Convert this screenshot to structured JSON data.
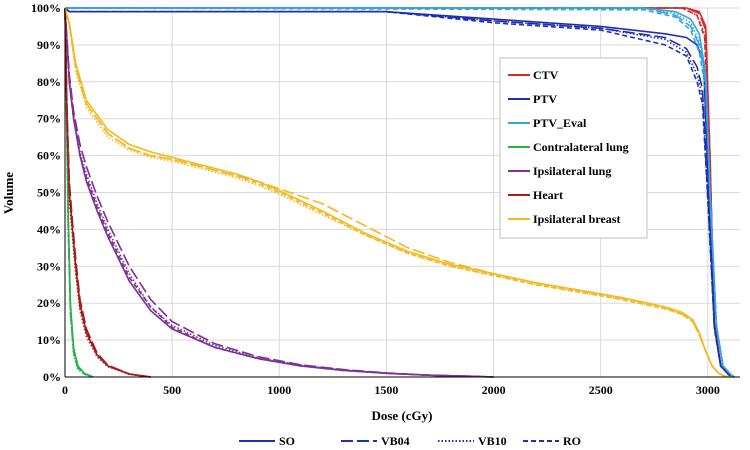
{
  "chart_data": {
    "type": "line",
    "title": "",
    "xlabel": "Dose (cGy)",
    "ylabel": "Volume",
    "xlim": [
      0,
      3150
    ],
    "ylim": [
      0,
      100
    ],
    "x_ticks": [
      0,
      500,
      1000,
      1500,
      2000,
      2500,
      3000
    ],
    "x_tick_labels": [
      "0",
      "500",
      "1000",
      "1500",
      "2000",
      "2500",
      "3000"
    ],
    "y_ticks": [
      0,
      10,
      20,
      30,
      40,
      50,
      60,
      70,
      80,
      90,
      100
    ],
    "y_tick_labels": [
      "0%",
      "10%",
      "20%",
      "30%",
      "40%",
      "50%",
      "60%",
      "70%",
      "80%",
      "90%",
      "100%"
    ],
    "grid": true,
    "structure_legend_position": "upper-right",
    "method_legend_position": "bottom-center",
    "structures": [
      {
        "name": "CTV",
        "color": "#d42a2a"
      },
      {
        "name": "PTV",
        "color": "#1f2fb4"
      },
      {
        "name": "PTV_Eval",
        "color": "#30a6e0"
      },
      {
        "name": "Contralateral lung",
        "color": "#25b34a"
      },
      {
        "name": "Ipsilateral lung",
        "color": "#7b3294"
      },
      {
        "name": "Heart",
        "color": "#a51c1c"
      },
      {
        "name": "Ipsilateral breast",
        "color": "#f2b81d"
      }
    ],
    "methods": [
      {
        "name": "SO",
        "dash": "solid"
      },
      {
        "name": "VB04",
        "dash": "long-dash"
      },
      {
        "name": "VB10",
        "dash": "dot"
      },
      {
        "name": "RO",
        "dash": "dash"
      }
    ],
    "series": [
      {
        "structure": "CTV",
        "method": "SO",
        "x": [
          0,
          2900,
          2960,
          2990,
          3010,
          3030,
          3060,
          3100,
          3120
        ],
        "y": [
          100,
          100,
          99,
          95,
          60,
          15,
          3,
          0.5,
          0
        ]
      },
      {
        "structure": "CTV",
        "method": "VB04",
        "x": [
          0,
          2900,
          2960,
          2990,
          3010,
          3030,
          3060,
          3100,
          3120
        ],
        "y": [
          100,
          100,
          98.5,
          94,
          60,
          14,
          3,
          0.5,
          0
        ]
      },
      {
        "structure": "CTV",
        "method": "VB10",
        "x": [
          0,
          2880,
          2950,
          2985,
          3010,
          3030,
          3060,
          3100,
          3120
        ],
        "y": [
          100,
          100,
          98,
          93,
          58,
          14,
          3,
          0.5,
          0
        ]
      },
      {
        "structure": "CTV",
        "method": "RO",
        "x": [
          0,
          2880,
          2950,
          2985,
          3010,
          3030,
          3060,
          3100,
          3120
        ],
        "y": [
          100,
          100,
          98,
          92,
          57,
          13,
          3,
          0.5,
          0
        ]
      },
      {
        "structure": "PTV",
        "method": "SO",
        "x": [
          0,
          20,
          1500,
          2000,
          2500,
          2800,
          2900,
          2950,
          2980,
          3000,
          3030,
          3060,
          3100,
          3120
        ],
        "y": [
          100,
          99,
          99,
          97,
          95,
          93,
          92,
          90,
          85,
          55,
          14,
          3,
          0.5,
          0
        ]
      },
      {
        "structure": "PTV",
        "method": "VB04",
        "x": [
          0,
          20,
          1500,
          2000,
          2500,
          2800,
          2900,
          2950,
          2975,
          2995,
          3030,
          3060,
          3100,
          3120
        ],
        "y": [
          100,
          99,
          99,
          96.5,
          94.5,
          92,
          89,
          84,
          78,
          55,
          14,
          3,
          0.5,
          0
        ]
      },
      {
        "structure": "PTV",
        "method": "VB10",
        "x": [
          0,
          20,
          1500,
          2000,
          2500,
          2800,
          2900,
          2950,
          2975,
          2995,
          3030,
          3060,
          3100,
          3120
        ],
        "y": [
          100,
          99,
          99,
          96.5,
          94.5,
          91.5,
          88,
          82,
          76,
          54,
          14,
          3,
          0.5,
          0
        ]
      },
      {
        "structure": "PTV",
        "method": "RO",
        "x": [
          0,
          20,
          1500,
          2000,
          2500,
          2800,
          2900,
          2950,
          2975,
          2995,
          3030,
          3060,
          3100,
          3120
        ],
        "y": [
          100,
          99,
          99,
          96,
          94,
          90,
          87,
          80,
          74,
          53,
          14,
          3,
          0.5,
          0
        ]
      },
      {
        "structure": "PTV_Eval",
        "method": "SO",
        "x": [
          0,
          2700,
          2850,
          2920,
          2960,
          2990,
          3010,
          3040,
          3070,
          3110,
          3125
        ],
        "y": [
          100,
          100,
          99,
          97,
          93,
          82,
          50,
          14,
          3,
          0.5,
          0
        ]
      },
      {
        "structure": "PTV_Eval",
        "method": "VB04",
        "x": [
          0,
          2700,
          2850,
          2920,
          2960,
          2990,
          3010,
          3040,
          3070,
          3110,
          3125
        ],
        "y": [
          100,
          100,
          98,
          95,
          90,
          80,
          50,
          14,
          3,
          0.5,
          0
        ]
      },
      {
        "structure": "PTV_Eval",
        "method": "VB10",
        "x": [
          0,
          2700,
          2850,
          2920,
          2960,
          2990,
          3010,
          3040,
          3070,
          3110,
          3125
        ],
        "y": [
          100,
          100,
          98.5,
          96,
          91,
          81,
          50,
          14,
          3,
          0.5,
          0
        ]
      },
      {
        "structure": "PTV_Eval",
        "method": "RO",
        "x": [
          0,
          2700,
          2850,
          2920,
          2960,
          2990,
          3010,
          3040,
          3070,
          3110,
          3125
        ],
        "y": [
          100,
          99.5,
          97.5,
          94,
          88,
          78,
          49,
          14,
          3,
          0.5,
          0
        ]
      },
      {
        "structure": "Contralateral lung",
        "method": "SO",
        "x": [
          0,
          5,
          15,
          25,
          40,
          60,
          90,
          130
        ],
        "y": [
          100,
          85,
          45,
          20,
          8,
          3,
          1,
          0
        ]
      },
      {
        "structure": "Contralateral lung",
        "method": "VB04",
        "x": [
          0,
          5,
          15,
          25,
          40,
          60,
          90,
          130
        ],
        "y": [
          100,
          83,
          42,
          18,
          7,
          2.5,
          1,
          0
        ]
      },
      {
        "structure": "Contralateral lung",
        "method": "VB10",
        "x": [
          0,
          5,
          15,
          25,
          40,
          60,
          90,
          130
        ],
        "y": [
          100,
          80,
          40,
          17,
          6,
          2,
          0.8,
          0
        ]
      },
      {
        "structure": "Contralateral lung",
        "method": "RO",
        "x": [
          0,
          5,
          15,
          25,
          40,
          60,
          90,
          130
        ],
        "y": [
          100,
          82,
          41,
          18,
          7,
          2.5,
          0.8,
          0
        ]
      },
      {
        "structure": "Ipsilateral lung",
        "method": "SO",
        "x": [
          0,
          20,
          40,
          70,
          100,
          150,
          200,
          300,
          400,
          500,
          700,
          900,
          1100,
          1300,
          1500,
          1700,
          1900,
          2000
        ],
        "y": [
          100,
          80,
          70,
          60,
          53,
          45,
          38,
          26,
          18,
          13,
          8,
          5,
          3,
          1.8,
          1,
          0.5,
          0.2,
          0
        ]
      },
      {
        "structure": "Ipsilateral lung",
        "method": "VB04",
        "x": [
          0,
          20,
          40,
          70,
          100,
          150,
          200,
          300,
          400,
          500,
          700,
          900,
          1100,
          1300,
          1500,
          1700,
          1900,
          2000
        ],
        "y": [
          100,
          82,
          72,
          63,
          57,
          49,
          42,
          30,
          21,
          15,
          9,
          5.5,
          3.3,
          2,
          1.1,
          0.5,
          0.2,
          0
        ]
      },
      {
        "structure": "Ipsilateral lung",
        "method": "VB10",
        "x": [
          0,
          20,
          40,
          70,
          100,
          150,
          200,
          300,
          400,
          500,
          700,
          900,
          1100,
          1300,
          1500,
          1700,
          1900,
          2000
        ],
        "y": [
          100,
          81,
          71,
          61,
          55,
          47,
          40,
          28,
          19,
          14,
          8.5,
          5.2,
          3.2,
          1.9,
          1,
          0.5,
          0.2,
          0
        ]
      },
      {
        "structure": "Ipsilateral lung",
        "method": "RO",
        "x": [
          0,
          20,
          40,
          70,
          100,
          150,
          200,
          300,
          400,
          500,
          700,
          900,
          1100,
          1300,
          1500,
          1700,
          1900,
          2000
        ],
        "y": [
          100,
          80,
          70,
          60,
          54,
          46,
          39,
          27,
          19,
          13.5,
          8,
          5,
          3,
          1.8,
          1,
          0.5,
          0.2,
          0
        ]
      },
      {
        "structure": "Heart",
        "method": "SO",
        "x": [
          0,
          10,
          20,
          35,
          50,
          70,
          100,
          150,
          200,
          300,
          400
        ],
        "y": [
          100,
          70,
          50,
          40,
          30,
          20,
          12,
          6,
          3,
          0.8,
          0
        ]
      },
      {
        "structure": "Heart",
        "method": "VB04",
        "x": [
          0,
          10,
          20,
          35,
          50,
          70,
          100,
          150,
          200,
          300,
          400
        ],
        "y": [
          100,
          72,
          53,
          42,
          32,
          21,
          13,
          6.5,
          3.2,
          0.8,
          0
        ]
      },
      {
        "structure": "Heart",
        "method": "VB10",
        "x": [
          0,
          10,
          20,
          35,
          50,
          70,
          100,
          150,
          200,
          300,
          400
        ],
        "y": [
          100,
          68,
          48,
          38,
          28,
          18,
          11,
          5.5,
          2.8,
          0.7,
          0
        ]
      },
      {
        "structure": "Heart",
        "method": "RO",
        "x": [
          0,
          10,
          20,
          35,
          50,
          70,
          100,
          150,
          200,
          300,
          400
        ],
        "y": [
          100,
          70,
          51,
          40,
          30,
          19,
          12,
          6,
          3,
          0.8,
          0
        ]
      },
      {
        "structure": "Ipsilateral breast",
        "method": "SO",
        "x": [
          0,
          20,
          50,
          100,
          200,
          300,
          400,
          500,
          600,
          700,
          800,
          900,
          1000,
          1200,
          1400,
          1600,
          1800,
          2000,
          2200,
          2400,
          2600,
          2800,
          2880,
          2930,
          2960,
          2990,
          3020,
          3050,
          3080,
          3110
        ],
        "y": [
          100,
          96,
          85,
          75,
          67,
          63,
          61,
          59.5,
          58,
          56.5,
          55,
          53,
          50.5,
          45,
          39,
          34,
          30.5,
          28,
          25.5,
          23.5,
          21.5,
          19,
          17.5,
          15.5,
          12,
          7,
          3,
          1,
          0.2,
          0
        ]
      },
      {
        "structure": "Ipsilateral breast",
        "method": "VB04",
        "x": [
          0,
          20,
          50,
          100,
          200,
          300,
          400,
          500,
          600,
          700,
          800,
          900,
          1000,
          1200,
          1400,
          1600,
          1800,
          2000,
          2200,
          2400,
          2600,
          2800,
          2880,
          2930,
          2960,
          2990,
          3020,
          3050,
          3080,
          3110
        ],
        "y": [
          100,
          96,
          84,
          74,
          66,
          62,
          60,
          59,
          57.5,
          56,
          54.5,
          53,
          51,
          47,
          41,
          35,
          31,
          28,
          25.5,
          23.5,
          21.5,
          19,
          17,
          15,
          11.5,
          7,
          3,
          1,
          0.2,
          0
        ]
      },
      {
        "structure": "Ipsilateral breast",
        "method": "VB10",
        "x": [
          0,
          20,
          50,
          100,
          200,
          300,
          400,
          500,
          600,
          700,
          800,
          900,
          1000,
          1200,
          1400,
          1600,
          1800,
          2000,
          2200,
          2400,
          2600,
          2800,
          2880,
          2930,
          2960,
          2990,
          3020,
          3050,
          3080,
          3110
        ],
        "y": [
          100,
          95,
          83,
          73,
          65,
          61.5,
          59.5,
          58.5,
          57,
          55.5,
          54,
          52,
          49.5,
          44,
          38.5,
          33.5,
          30,
          27.5,
          25,
          23,
          21,
          18.5,
          17,
          15,
          11.5,
          7,
          3,
          1,
          0.2,
          0
        ]
      },
      {
        "structure": "Ipsilateral breast",
        "method": "RO",
        "x": [
          0,
          20,
          50,
          100,
          200,
          300,
          400,
          500,
          600,
          700,
          800,
          900,
          1000,
          1200,
          1400,
          1600,
          1800,
          2000,
          2200,
          2400,
          2600,
          2800,
          2880,
          2930,
          2960,
          2990,
          3020,
          3050,
          3080,
          3110
        ],
        "y": [
          100,
          95.5,
          84,
          74,
          66,
          62,
          60,
          59,
          57.5,
          56,
          54.5,
          52.5,
          50,
          44.5,
          38.5,
          33.5,
          30,
          27.5,
          25,
          23,
          21,
          18.5,
          17,
          15,
          11.5,
          7,
          3,
          1,
          0.2,
          0
        ]
      }
    ]
  }
}
